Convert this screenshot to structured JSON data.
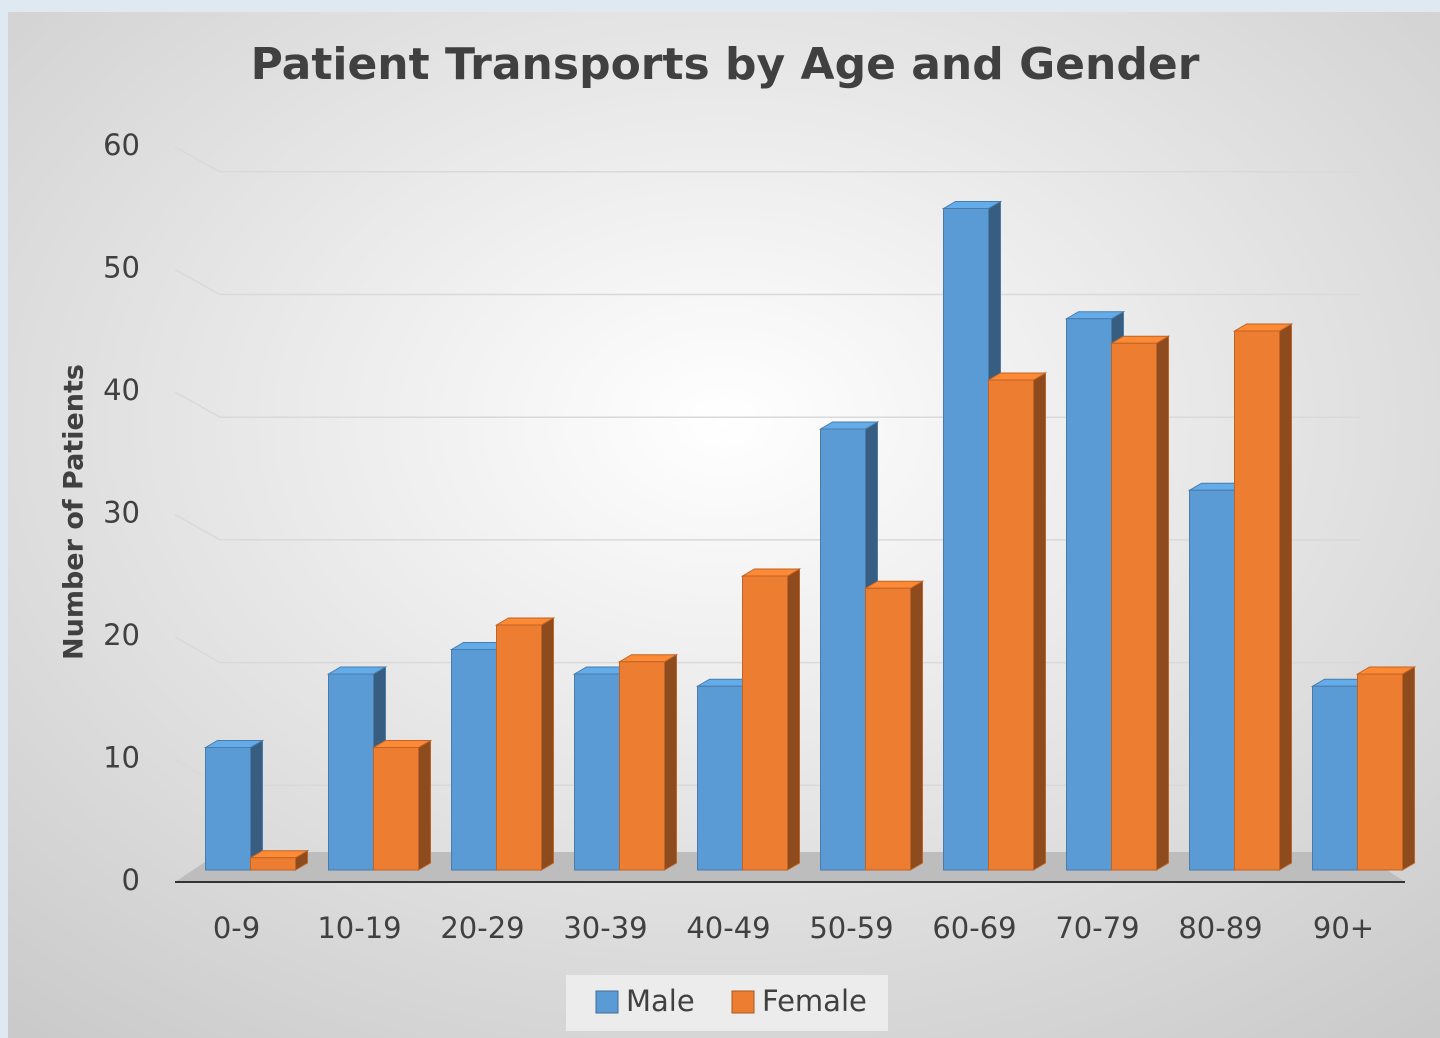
{
  "chart_data": {
    "type": "bar",
    "title": "Patient Transports by Age and Gender",
    "y_label": "Number of Patients",
    "categories": [
      "0-9",
      "10-19",
      "20-29",
      "30-39",
      "40-49",
      "50-59",
      "60-69",
      "70-79",
      "80-89",
      "90+"
    ],
    "series": [
      {
        "name": "Male",
        "color": "#5b9bd5",
        "values": [
          10,
          16,
          18,
          16,
          15,
          36,
          54,
          45,
          31,
          15
        ]
      },
      {
        "name": "Female",
        "color": "#ed7d31",
        "values": [
          1,
          10,
          20,
          17,
          24,
          23,
          40,
          43,
          44,
          16
        ]
      }
    ],
    "ylim": [
      0,
      60
    ],
    "yticks": [
      0,
      10,
      20,
      30,
      40,
      50,
      60
    ],
    "grid": true,
    "legend": "bottom"
  }
}
